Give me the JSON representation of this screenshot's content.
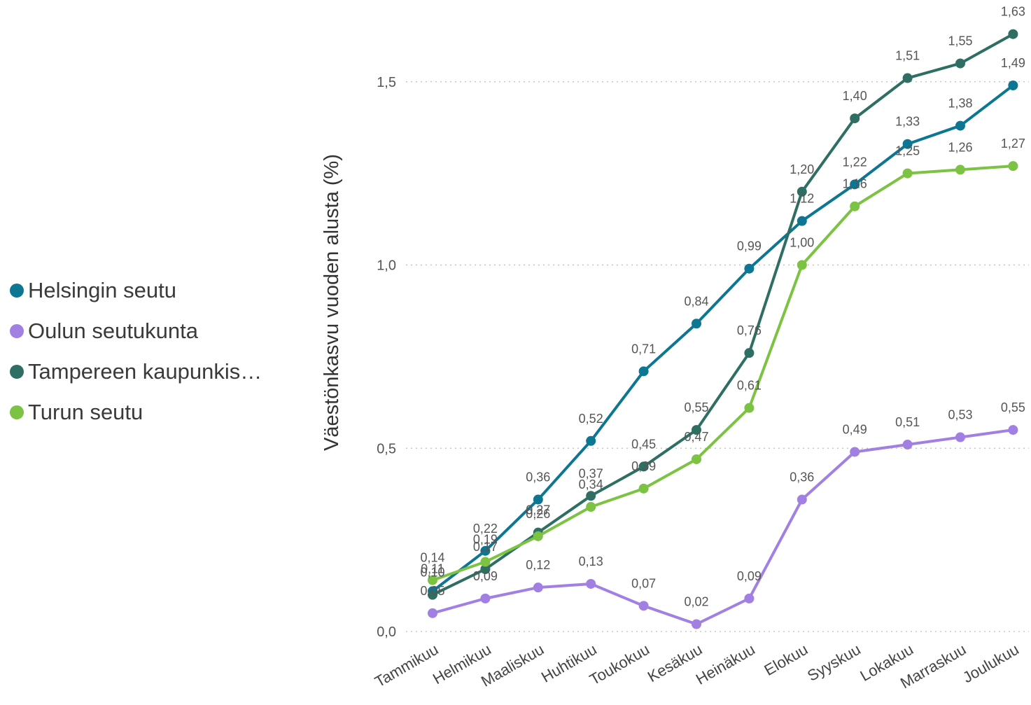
{
  "legend": {
    "items": [
      {
        "label": "Helsingin seutu",
        "color": "#0d7793"
      },
      {
        "label": "Oulun seutukunta",
        "color": "#a27fe3"
      },
      {
        "label": "Tampereen kaupunkis…",
        "color": "#2f6f63"
      },
      {
        "label": "Turun seutu",
        "color": "#7cc243"
      }
    ]
  },
  "chart_data": {
    "type": "line",
    "ylabel": "Väestönkasvu vuoden alusta (%)",
    "ylim": [
      0,
      1.63
    ],
    "yticks": [
      "0,0",
      "0,5",
      "1,0",
      "1,5"
    ],
    "grid": "horizontal dotted",
    "legend_position": "left",
    "categories": [
      "Tammikuu",
      "Helmikuu",
      "Maaliskuu",
      "Huhtikuu",
      "Toukokuu",
      "Kesäkuu",
      "Heinäkuu",
      "Elokuu",
      "Syyskuu",
      "Lokakuu",
      "Marraskuu",
      "Joulukuu"
    ],
    "series": [
      {
        "name": "Helsingin seutu",
        "color": "#0d7793",
        "values": [
          0.11,
          0.22,
          0.36,
          0.52,
          0.71,
          0.84,
          0.99,
          1.12,
          1.22,
          1.33,
          1.38,
          1.49
        ],
        "labels": [
          "0,11",
          "0,22",
          "0,36",
          "0,52",
          "0,71",
          "0,84",
          "0,99",
          "1,12",
          "1,22",
          "1,33",
          "1,38",
          "1,49"
        ]
      },
      {
        "name": "Oulun seutukunta",
        "color": "#a27fe3",
        "values": [
          0.05,
          0.09,
          0.12,
          0.13,
          0.07,
          0.02,
          0.09,
          0.36,
          0.49,
          0.51,
          0.53,
          0.55
        ],
        "labels": [
          "0,05",
          "0,09",
          "0,12",
          "0,13",
          "0,07",
          "0,02",
          "0,09",
          "0,36",
          "0,49",
          "0,51",
          "0,53",
          "0,55"
        ]
      },
      {
        "name": "Tampereen kaupunkis…",
        "color": "#2f6f63",
        "values": [
          0.1,
          0.17,
          0.27,
          0.37,
          0.45,
          0.55,
          0.76,
          1.2,
          1.4,
          1.51,
          1.55,
          1.63
        ],
        "labels": [
          "0,10",
          "0,17",
          "0,27",
          "0,37",
          "0,45",
          "0,55",
          "0,76",
          "1,20",
          "1,40",
          "1,51",
          "1,55",
          "1,63"
        ]
      },
      {
        "name": "Turun seutu",
        "color": "#7cc243",
        "values": [
          0.14,
          0.19,
          0.26,
          0.34,
          0.39,
          0.47,
          0.61,
          1.0,
          1.16,
          1.25,
          1.26,
          1.27
        ],
        "labels": [
          "0,14",
          "0,19",
          "0,26",
          "0,34",
          "0,39",
          "0,47",
          "0,61",
          "1,00",
          "1,16",
          "1,25",
          "1,26",
          "1,27"
        ]
      }
    ]
  }
}
